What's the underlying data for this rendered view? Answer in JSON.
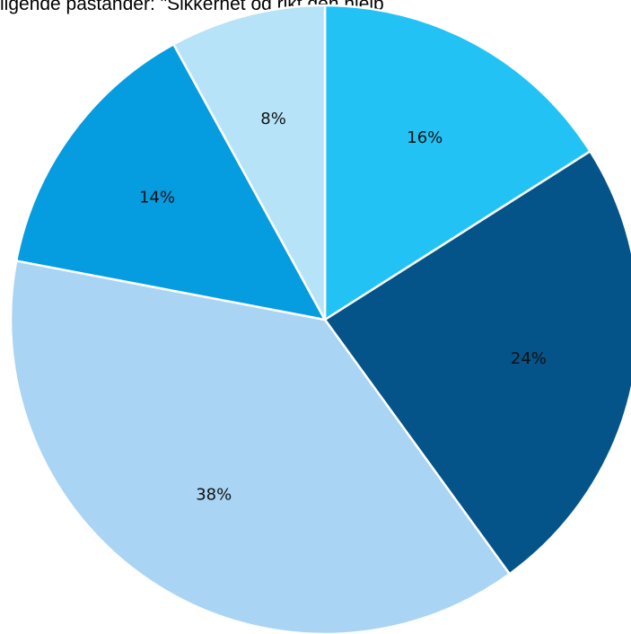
{
  "chart_data": {
    "type": "pie",
    "title": "ligende påstander:  \"Sikkerhet og rikt den hjelp",
    "slices": [
      {
        "label": "16%",
        "value": 16,
        "color": "#22C3F4"
      },
      {
        "label": "24%",
        "value": 24,
        "color": "#04548A"
      },
      {
        "label": "38%",
        "value": 38,
        "color": "#A9D4F4"
      },
      {
        "label": "14%",
        "value": 14,
        "color": "#059CE0"
      },
      {
        "label": "8%",
        "value": 8,
        "color": "#B6E3F8"
      }
    ],
    "border_color": "#FFFFFF"
  }
}
